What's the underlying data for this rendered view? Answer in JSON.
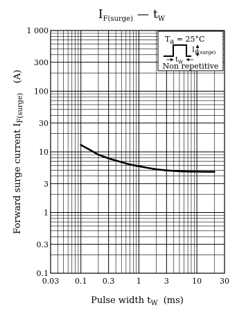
{
  "chart_data": {
    "type": "line",
    "title": {
      "main": "I",
      "sub": "F(surge)",
      "dash": "—",
      "main2": "t",
      "sub2": "W"
    },
    "xlabel": {
      "text": "Pulse width  t",
      "sub": "W",
      "unit": "(ms)"
    },
    "ylabel": {
      "text": "Forward surge current  I",
      "sub": "F(surge)",
      "unit": "(A)"
    },
    "x_scale": "log",
    "y_scale": "log",
    "xlim": [
      0.03,
      30
    ],
    "ylim": [
      0.1,
      1000
    ],
    "grid": true,
    "x_ticks": [
      {
        "value": 0.03,
        "label": "0.03"
      },
      {
        "value": 0.1,
        "label": "0.1"
      },
      {
        "value": 0.3,
        "label": "0.3"
      },
      {
        "value": 1,
        "label": "1"
      },
      {
        "value": 3,
        "label": "3"
      },
      {
        "value": 10,
        "label": "10"
      },
      {
        "value": 30,
        "label": "30"
      }
    ],
    "y_ticks": [
      {
        "value": 0.1,
        "label": "0.1"
      },
      {
        "value": 0.3,
        "label": "0.3"
      },
      {
        "value": 1,
        "label": "1"
      },
      {
        "value": 3,
        "label": "3"
      },
      {
        "value": 10,
        "label": "10"
      },
      {
        "value": 30,
        "label": "30"
      },
      {
        "value": 100,
        "label": "100"
      },
      {
        "value": 300,
        "label": "300"
      },
      {
        "value": 1000,
        "label": "1 000"
      }
    ],
    "series": [
      {
        "x": [
          0.1,
          0.15,
          0.2,
          0.3,
          0.5,
          0.7,
          1,
          1.5,
          2,
          3,
          5,
          7,
          10,
          15,
          20
        ],
        "y": [
          13,
          10.5,
          9,
          7.8,
          6.8,
          6.2,
          5.8,
          5.4,
          5.15,
          4.95,
          4.8,
          4.75,
          4.72,
          4.7,
          4.7
        ]
      }
    ],
    "inset": {
      "ta_prefix": "T",
      "ta_sub": "a",
      "ta_value": " = 25°C",
      "pulse_label": "I",
      "pulse_label_sub": "F(surge)",
      "width_label": "t",
      "width_label_sub": "W",
      "note": "Non repetitive"
    }
  }
}
